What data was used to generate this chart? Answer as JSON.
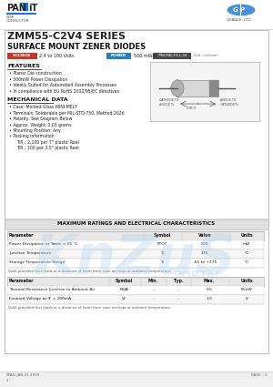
{
  "bg_color": "#ffffff",
  "title_series": "ZMM55-C2V4 SERIES",
  "title_subtitle": "SURFACE MOUNT ZENER DIODES",
  "voltage_label": "VOLTAGE",
  "voltage_value": "2.4 to 100 Volts",
  "power_label": "POWER",
  "power_value": "500 mWatts",
  "package_label": "MINI-MELF/LL-34",
  "package_note": "Unit: inch(mm)",
  "features_title": "FEATURES",
  "features": [
    "Planar Die construction",
    "500mW Power Dissipation",
    "Ideally Suited for Automated Assembly Processes",
    "In compliance with EU RoHS 2002/95/EC directives"
  ],
  "mech_title": "MECHANICAL DATA",
  "mech_items": [
    "Case: Molded-Glass MINI-MELF",
    "Terminals: Solderable per MIL-STD-750, Method 2026",
    "Polarity: See Diagram Below",
    "Approx. Weight: 0.03 grams",
    "Mounting Position: Any",
    "Packing information"
  ],
  "packing_1": "T/R : 2,100 per 7\" plastic Reel",
  "packing_2": "T/R : 100 per 3.5\" plastic Reel",
  "section2_title": "MAXIMUM RATINGS AND ELECTRICAL CHARACTERISTICS",
  "table1_headers": [
    "Parameter",
    "Symbol",
    "Value",
    "Units"
  ],
  "table1_rows": [
    [
      "Power Dissipation at Tamb = 25 °C",
      "PTOT",
      "500",
      "mW"
    ],
    [
      "Junction Temperature",
      "TJ",
      "175",
      "°C"
    ],
    [
      "Storage Temperature Range",
      "Ts",
      "-65 to +175",
      "°C"
    ]
  ],
  "table1_note": "Valid provided that leads at a distance of 5mm from case are kept at ambient temperature.",
  "table2_headers": [
    "Parameter",
    "Symbol",
    "Min.",
    "Typ.",
    "Max.",
    "Units"
  ],
  "table2_rows": [
    [
      "Thermal Resistance Junction to Ambient Air",
      "RθJA",
      "–",
      "–",
      "0.5",
      "K/mW"
    ],
    [
      "Forward Voltage at IF = 200mA",
      "VF",
      "–",
      "–",
      "1.5",
      "V"
    ]
  ],
  "table2_note": "Valid provided that leads at a distance of 5mm from case are kept at ambient temperature.",
  "footer_left": "STAD-JAN.21.2009",
  "footer_right": "PAGE : 1",
  "panjit_blue": "#1a73e8",
  "voltage_bg": "#c0392b",
  "power_bg": "#2980b9",
  "package_bg": "#4a4a4a",
  "grande_color": "#4a90d9",
  "section_line_color": "#333333",
  "table_header_bg": "#e8e8e8",
  "table_border": "#aaaaaa",
  "section_bar_bg": "#e0e0e0"
}
